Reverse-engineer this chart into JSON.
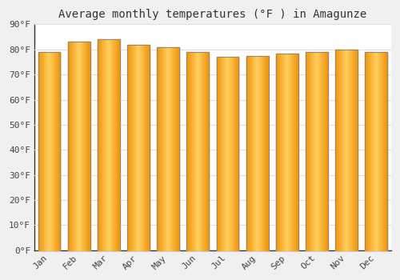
{
  "title": "Average monthly temperatures (°F ) in Amagunze",
  "months": [
    "Jan",
    "Feb",
    "Mar",
    "Apr",
    "May",
    "Jun",
    "Jul",
    "Aug",
    "Sep",
    "Oct",
    "Nov",
    "Dec"
  ],
  "values": [
    79.0,
    83.0,
    84.0,
    82.0,
    81.0,
    79.0,
    77.0,
    77.5,
    78.5,
    79.0,
    80.0,
    79.0
  ],
  "bar_color_center": "#FFD060",
  "bar_color_edge": "#F0950A",
  "bar_border_color": "#888888",
  "ylim": [
    0,
    90
  ],
  "yticks": [
    0,
    10,
    20,
    30,
    40,
    50,
    60,
    70,
    80,
    90
  ],
  "ytick_labels": [
    "0°F",
    "10°F",
    "20°F",
    "30°F",
    "40°F",
    "50°F",
    "60°F",
    "70°F",
    "80°F",
    "90°F"
  ],
  "background_color": "#f0f0f0",
  "plot_bg_color": "#ffffff",
  "grid_color": "#e0e0e0",
  "title_fontsize": 10,
  "tick_fontsize": 8,
  "bar_width": 0.75
}
